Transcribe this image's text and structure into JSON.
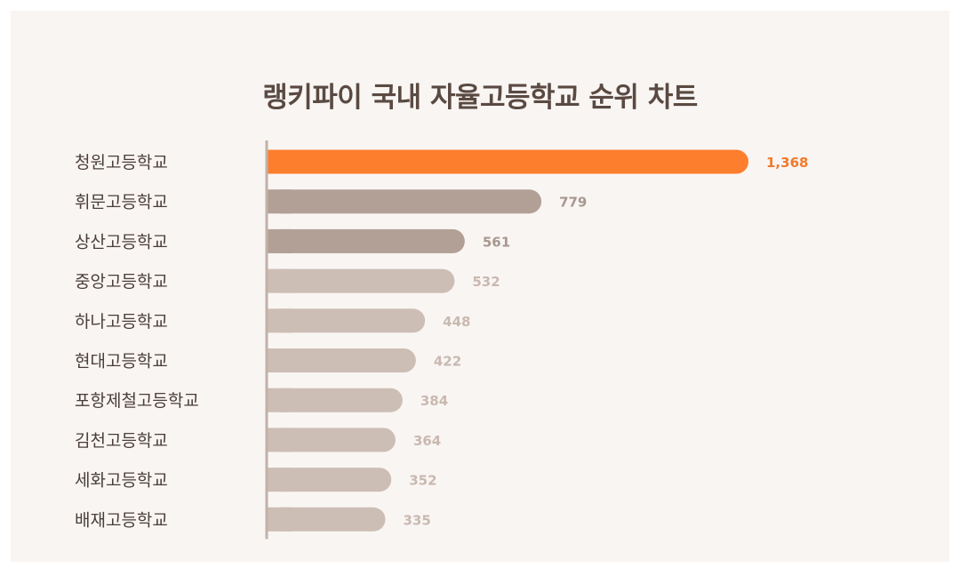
{
  "chart_data": {
    "type": "bar",
    "orientation": "horizontal",
    "title": "랭키파이 국내 자율고등학교 순위 차트",
    "xlabel": "",
    "ylabel": "",
    "xlim": [
      0,
      1368
    ],
    "grid": false,
    "legend": "none",
    "categories": [
      "청원고등학교",
      "휘문고등학교",
      "상산고등학교",
      "중앙고등학교",
      "하나고등학교",
      "현대고등학교",
      "포항제철고등학교",
      "김천고등학교",
      "세화고등학교",
      "배재고등학교"
    ],
    "values": [
      1368,
      779,
      561,
      532,
      448,
      422,
      384,
      364,
      352,
      335
    ],
    "value_labels": [
      "1,368",
      "779",
      "561",
      "532",
      "448",
      "422",
      "384",
      "364",
      "352",
      "335"
    ],
    "bar_colors": [
      "#fd7e2d",
      "#b2a096",
      "#b2a096",
      "#cdbeb5",
      "#cdbeb5",
      "#cdbeb5",
      "#cdbeb5",
      "#cdbeb5",
      "#cdbeb5",
      "#cdbeb5"
    ],
    "label_colors": [
      "#f07a2b",
      "#a8978e",
      "#a8978e",
      "#c9b9b0",
      "#c9b9b0",
      "#c9b9b0",
      "#c9b9b0",
      "#c9b9b0",
      "#c9b9b0",
      "#c9b9b0"
    ]
  },
  "colors": {
    "background": "#f9f5f3",
    "axis": "#c1b1a7",
    "category_text": "#4a3e38",
    "title": "#5a4a42"
  }
}
